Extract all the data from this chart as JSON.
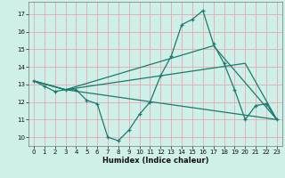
{
  "bg_color": "#cef0e8",
  "grid_color": "#e8a8b0",
  "line_color": "#1a7a6e",
  "xlabel": "Humidex (Indice chaleur)",
  "xlim": [
    -0.5,
    23.5
  ],
  "ylim": [
    9.5,
    17.7
  ],
  "xticks": [
    0,
    1,
    2,
    3,
    4,
    5,
    6,
    7,
    8,
    9,
    10,
    11,
    12,
    13,
    14,
    15,
    16,
    17,
    18,
    19,
    20,
    21,
    22,
    23
  ],
  "yticks": [
    10,
    11,
    12,
    13,
    14,
    15,
    16,
    17
  ],
  "line1_x": [
    0,
    1,
    2,
    3,
    4,
    5,
    6,
    7,
    8,
    9,
    10,
    11,
    12,
    13,
    14,
    15,
    16,
    17,
    18,
    19,
    20,
    21,
    22,
    23
  ],
  "line1_y": [
    13.2,
    12.9,
    12.6,
    12.7,
    12.7,
    12.1,
    11.9,
    10.0,
    9.8,
    10.4,
    11.3,
    12.0,
    13.5,
    14.6,
    16.4,
    16.7,
    17.2,
    15.3,
    14.2,
    12.7,
    11.0,
    11.8,
    11.9,
    11.0
  ],
  "line2_x": [
    0,
    3,
    23
  ],
  "line2_y": [
    13.2,
    12.7,
    11.0
  ],
  "line3_x": [
    0,
    3,
    17,
    23
  ],
  "line3_y": [
    13.2,
    12.7,
    15.2,
    11.0
  ],
  "line4_x": [
    0,
    3,
    20,
    23
  ],
  "line4_y": [
    13.2,
    12.7,
    14.2,
    11.0
  ]
}
